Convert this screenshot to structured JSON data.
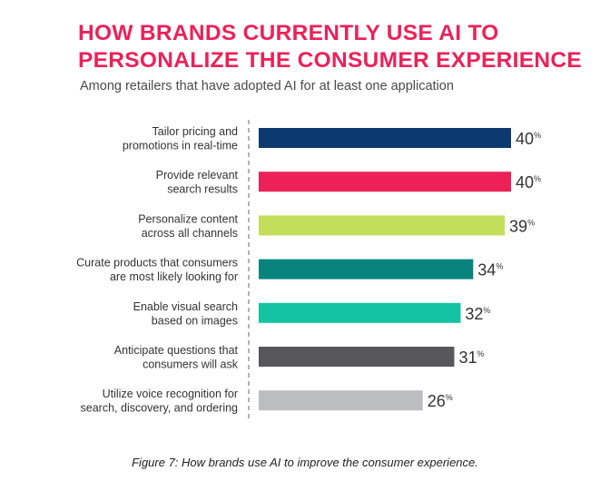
{
  "header": {
    "title": "HOW BRANDS CURRENTLY USE AI TO PERSONALIZE THE CONSUMER EXPERIENCE",
    "subtitle": "Among retailers that have adopted AI for at least one application"
  },
  "caption": "Figure 7: How brands use AI to improve the consumer experience.",
  "chart_data": {
    "type": "bar",
    "orientation": "horizontal",
    "title": "HOW BRANDS CURRENTLY USE AI TO PERSONALIZE THE CONSUMER EXPERIENCE",
    "subtitle": "Among retailers that have adopted AI for at least one application",
    "xlim": [
      0,
      40
    ],
    "grid": false,
    "unit": "%",
    "categories": [
      [
        "Tailor pricing and",
        "promotions in real-time"
      ],
      [
        "Provide relevant",
        "search results"
      ],
      [
        "Personalize content",
        "across all channels"
      ],
      [
        "Curate products that consumers",
        "are most likely looking for"
      ],
      [
        "Enable visual search",
        "based on images"
      ],
      [
        "Anticipate questions that",
        "consumers will ask"
      ],
      [
        "Utilize voice recognition for",
        "search, discovery, and ordering"
      ]
    ],
    "values": [
      40,
      40,
      39,
      34,
      32,
      31,
      26
    ],
    "colors": [
      "#0d3a6e",
      "#ec2158",
      "#c3df5a",
      "#08837e",
      "#14c3a1",
      "#58585a",
      "#bcbdbf"
    ]
  }
}
